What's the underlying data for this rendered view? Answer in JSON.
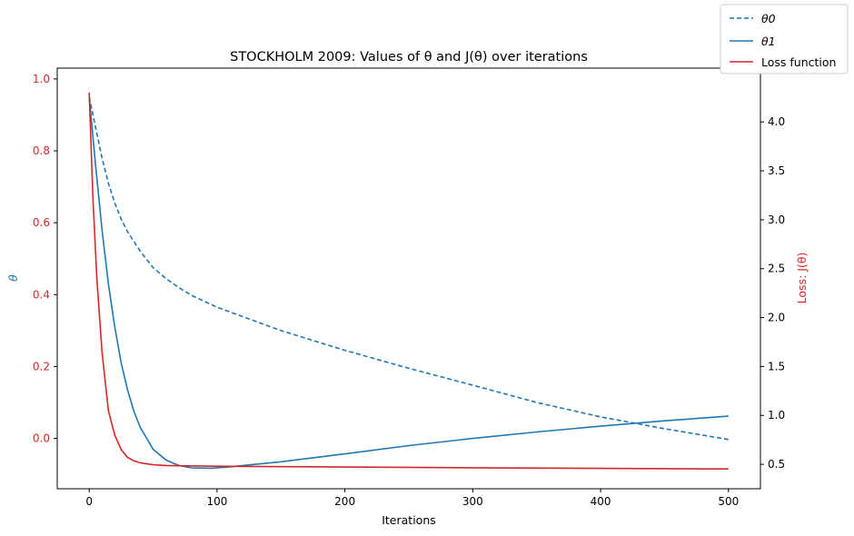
{
  "chart_data": {
    "type": "line",
    "title": "STOCKHOLM 2009: Values of θ and J(θ) over iterations",
    "xlabel": "Iterations",
    "ylabel_left": "θ",
    "ylabel_right": "Loss: J(θ)",
    "xlim": [
      -25,
      525
    ],
    "ylim_left": [
      -0.14,
      1.03
    ],
    "ylim_right": [
      0.25,
      4.55
    ],
    "xticks": [
      0,
      100,
      200,
      300,
      400,
      500
    ],
    "yticks_left": [
      0.0,
      0.2,
      0.4,
      0.6,
      0.8,
      1.0
    ],
    "yticks_right": [
      0.5,
      1.0,
      1.5,
      2.0,
      2.5,
      3.0,
      3.5,
      4.0
    ],
    "legend_placement": "top-right (outside)",
    "grid": false,
    "colors": {
      "theta": "#1f77b4",
      "loss": "#d62728",
      "axis": "#000000"
    },
    "series": [
      {
        "name": "θ0",
        "axis": "left",
        "style": "dashed",
        "x": [
          0,
          5,
          10,
          15,
          20,
          25,
          30,
          40,
          50,
          60,
          70,
          80,
          100,
          150,
          200,
          250,
          300,
          350,
          400,
          450,
          500
        ],
        "y": [
          0.95,
          0.865,
          0.78,
          0.71,
          0.655,
          0.61,
          0.575,
          0.52,
          0.475,
          0.445,
          0.42,
          0.398,
          0.365,
          0.3,
          0.245,
          0.195,
          0.148,
          0.1,
          0.06,
          0.027,
          -0.003
        ]
      },
      {
        "name": "θ1",
        "axis": "left",
        "style": "solid",
        "x": [
          0,
          5,
          10,
          15,
          20,
          25,
          30,
          35,
          40,
          50,
          60,
          70,
          80,
          95,
          110,
          130,
          150,
          200,
          250,
          300,
          350,
          400,
          450,
          500
        ],
        "y": [
          0.95,
          0.76,
          0.58,
          0.43,
          0.31,
          0.21,
          0.135,
          0.075,
          0.03,
          -0.03,
          -0.06,
          -0.075,
          -0.082,
          -0.083,
          -0.079,
          -0.072,
          -0.065,
          -0.043,
          -0.02,
          0.0,
          0.018,
          0.034,
          0.049,
          0.062
        ]
      },
      {
        "name": "Loss function",
        "axis": "right",
        "style": "solid",
        "x": [
          0,
          3,
          6,
          10,
          15,
          20,
          25,
          30,
          35,
          40,
          50,
          60,
          70,
          100,
          200,
          300,
          400,
          500
        ],
        "y": [
          4.3,
          3.2,
          2.4,
          1.65,
          1.05,
          0.8,
          0.65,
          0.57,
          0.535,
          0.515,
          0.495,
          0.488,
          0.485,
          0.48,
          0.472,
          0.465,
          0.458,
          0.452
        ]
      }
    ]
  }
}
